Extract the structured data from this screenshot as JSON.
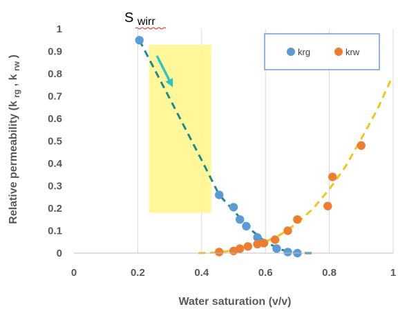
{
  "chart_data": {
    "type": "scatter",
    "xlabel": "Water saturation (v/v)",
    "ylabel_main": "Relative permeability (k",
    "ylabel_sub1": "rg",
    "ylabel_sep": ", k",
    "ylabel_sub2": "rw",
    "ylabel_end": ")",
    "xlim": [
      0,
      1
    ],
    "ylim": [
      0,
      1
    ],
    "x_ticks": [
      "0",
      "0.2",
      "0.4",
      "0.6",
      "0.8",
      "1"
    ],
    "y_ticks": [
      "0",
      "0.1",
      "0.2",
      "0.3",
      "0.4",
      "0.5",
      "0.6",
      "0.7",
      "0.8",
      "0.9",
      "1"
    ],
    "grid": "vertical",
    "legend_position": "top-right",
    "annotation": {
      "main": "S",
      "sub": "wirr",
      "x": 0.205,
      "y": 0.95
    },
    "highlight_region": {
      "x0": 0.235,
      "x1": 0.43,
      "y0": 0.18,
      "y1": 0.93,
      "color": "#fff68f"
    },
    "arrow": {
      "from": [
        0.26,
        0.88
      ],
      "to": [
        0.31,
        0.74
      ],
      "color": "#2ec4c4"
    },
    "series": [
      {
        "name": "krg",
        "color": "#5b9bd5",
        "points": [
          [
            0.205,
            0.95
          ],
          [
            0.455,
            0.26
          ],
          [
            0.5,
            0.205
          ],
          [
            0.52,
            0.15
          ],
          [
            0.54,
            0.12
          ],
          [
            0.575,
            0.07
          ],
          [
            0.595,
            0.045
          ],
          [
            0.635,
            0.02
          ],
          [
            0.67,
            0.005
          ],
          [
            0.7,
            0.0
          ]
        ],
        "trend_color": "#1a8a8a",
        "trend": [
          [
            0.205,
            0.95
          ],
          [
            0.3,
            0.69
          ],
          [
            0.4,
            0.415
          ],
          [
            0.455,
            0.26
          ],
          [
            0.5,
            0.19
          ],
          [
            0.55,
            0.11
          ],
          [
            0.6,
            0.05
          ],
          [
            0.65,
            0.015
          ],
          [
            0.7,
            0.0
          ],
          [
            0.745,
            0.0
          ]
        ]
      },
      {
        "name": "krw",
        "color": "#ed7d31",
        "points": [
          [
            0.455,
            0.005
          ],
          [
            0.5,
            0.01
          ],
          [
            0.52,
            0.02
          ],
          [
            0.545,
            0.03
          ],
          [
            0.575,
            0.04
          ],
          [
            0.595,
            0.045
          ],
          [
            0.63,
            0.06
          ],
          [
            0.67,
            0.1
          ],
          [
            0.7,
            0.15
          ],
          [
            0.795,
            0.21
          ],
          [
            0.81,
            0.34
          ],
          [
            0.9,
            0.48
          ]
        ],
        "trend_color": "#f5c418",
        "trend": [
          [
            0.39,
            0.0
          ],
          [
            0.45,
            0.003
          ],
          [
            0.5,
            0.012
          ],
          [
            0.55,
            0.028
          ],
          [
            0.6,
            0.05
          ],
          [
            0.65,
            0.085
          ],
          [
            0.7,
            0.135
          ],
          [
            0.75,
            0.2
          ],
          [
            0.8,
            0.285
          ],
          [
            0.85,
            0.385
          ],
          [
            0.9,
            0.51
          ],
          [
            0.95,
            0.64
          ],
          [
            0.995,
            0.78
          ]
        ]
      }
    ]
  }
}
